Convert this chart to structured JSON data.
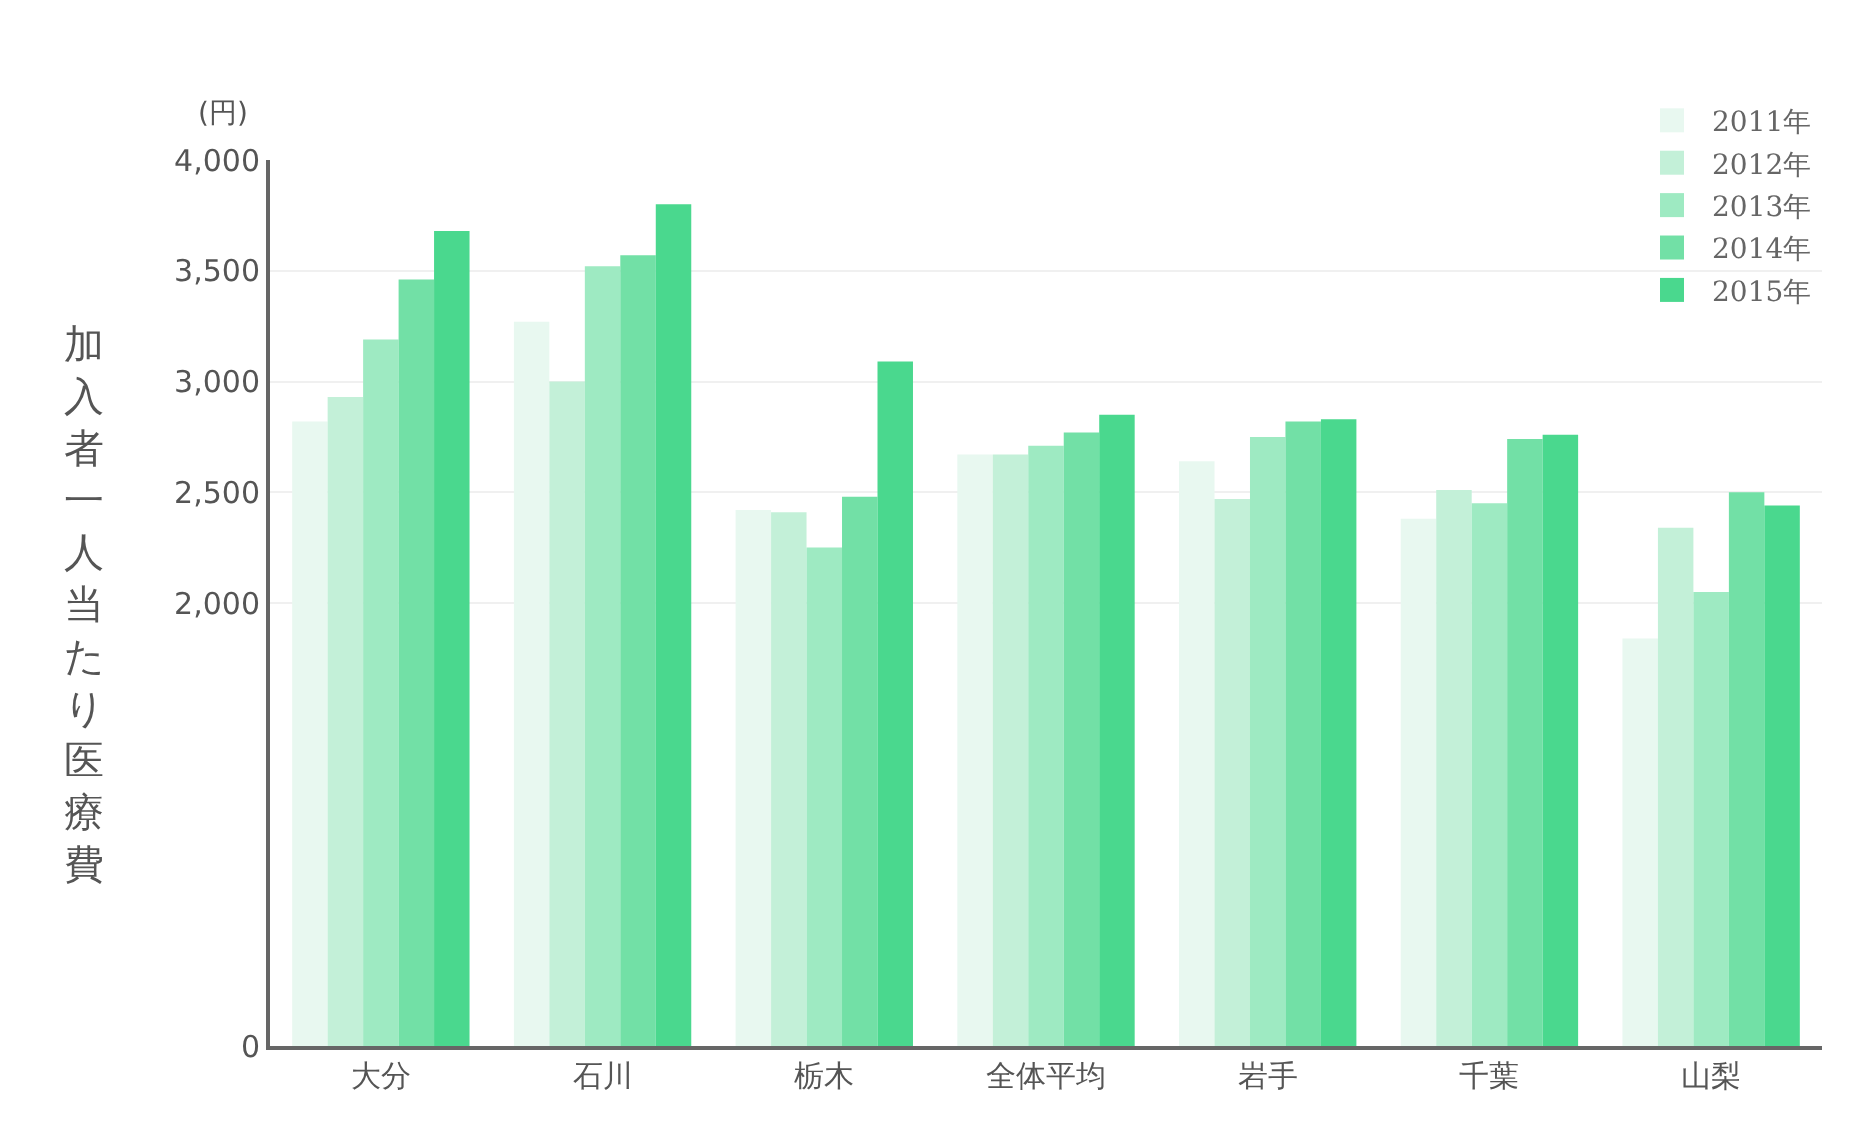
{
  "chart_data": {
    "type": "bar",
    "ylabel": "加入者一人当たり医療費",
    "annotations": [
      "(円)"
    ],
    "categories": [
      "大分",
      "石川",
      "栃木",
      "全体平均",
      "岩手",
      "千葉",
      "山梨"
    ],
    "series": [
      {
        "name": "2011年",
        "color": "#e8f8f0",
        "values": [
          2820,
          3270,
          2420,
          2670,
          2640,
          2380,
          1840
        ]
      },
      {
        "name": "2012年",
        "color": "#c3f0d8",
        "values": [
          2930,
          3000,
          2410,
          2670,
          2470,
          2510,
          2340
        ]
      },
      {
        "name": "2013年",
        "color": "#9eeac2",
        "values": [
          3190,
          3520,
          2250,
          2710,
          2750,
          2450,
          2050
        ]
      },
      {
        "name": "2014年",
        "color": "#72e0a6",
        "values": [
          3460,
          3570,
          2480,
          2770,
          2820,
          2740,
          2500
        ]
      },
      {
        "name": "2015年",
        "color": "#4ad88e",
        "values": [
          3680,
          3800,
          3090,
          2850,
          2830,
          2760,
          2440
        ]
      }
    ],
    "ylim": [
      0,
      4000
    ],
    "yticks": [
      0,
      {
        "value": 2000,
        "label": "2,000"
      },
      {
        "value": 2500,
        "label": "2,500"
      },
      {
        "value": 3000,
        "label": "3,000"
      },
      {
        "value": 3500,
        "label": "3,500"
      },
      {
        "value": 4000,
        "label": "4,000"
      }
    ],
    "grid": "y",
    "legend": "top right"
  }
}
